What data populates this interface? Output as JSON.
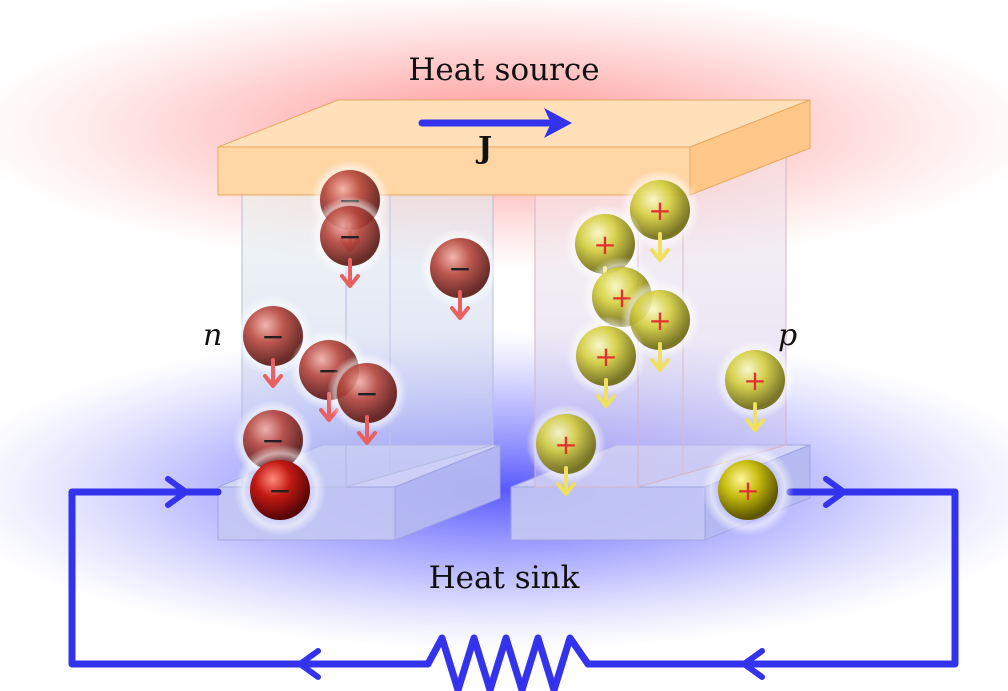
{
  "labels": {
    "heat_source": "Heat source",
    "heat_sink": "Heat sink",
    "current": "J",
    "n_leg": "n",
    "p_leg": "p"
  },
  "carriers": {
    "electron_sign": "−",
    "hole_sign": "+"
  },
  "colors": {
    "hot": "#ff3030",
    "cold": "#2a2aff",
    "hot_plate": "#ffd9a8",
    "cold_plate": "#c8ccf6",
    "wire": "#3333ee",
    "electron": "#b8473d",
    "electron_arrow": "#e86060",
    "hole": "#d6d23a",
    "hole_arrow": "#f0e060",
    "sign_electron": "#222222",
    "sign_hole": "#e03030"
  }
}
